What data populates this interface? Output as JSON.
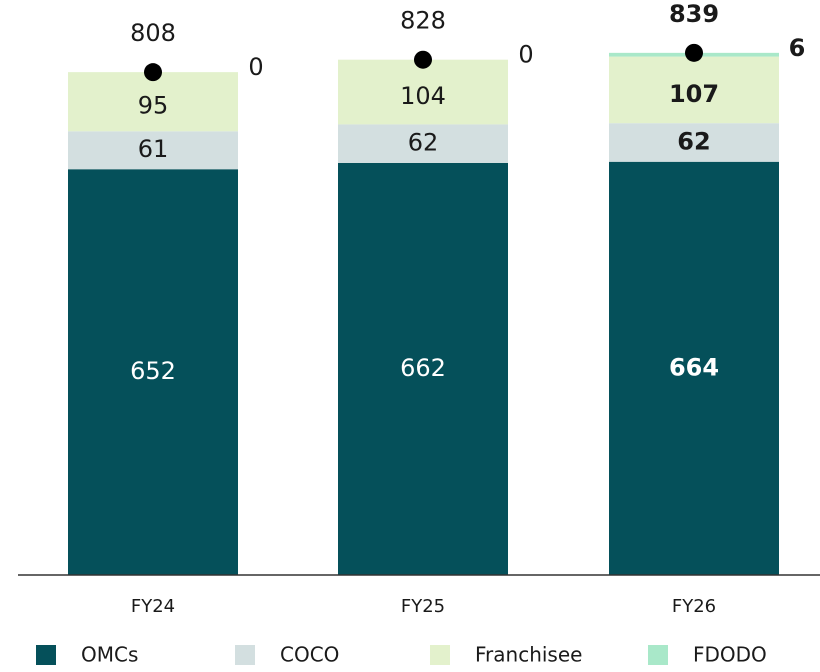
{
  "chart_data": {
    "type": "stacked_bar",
    "categories": [
      "FY24",
      "FY25",
      "FY26"
    ],
    "series": [
      {
        "name": "OMCs",
        "color": "#05505a",
        "label_color": "#ffffff",
        "values": [
          652,
          662,
          664
        ]
      },
      {
        "name": "COCO",
        "color": "#d3dfe0",
        "label_color": "#1a1a1a",
        "values": [
          61,
          62,
          62
        ]
      },
      {
        "name": "Franchisee",
        "color": "#e3f1cc",
        "label_color": "#1a1a1a",
        "values": [
          95,
          104,
          107
        ]
      },
      {
        "name": "FDODO",
        "color": "#a9e8c9",
        "label_color": "#1a1a1a",
        "values": [
          0,
          0,
          6
        ]
      }
    ],
    "totals": [
      808,
      828,
      839
    ],
    "highlight": "FY26",
    "ylim": [
      0,
      850
    ],
    "legend": "bottom"
  }
}
